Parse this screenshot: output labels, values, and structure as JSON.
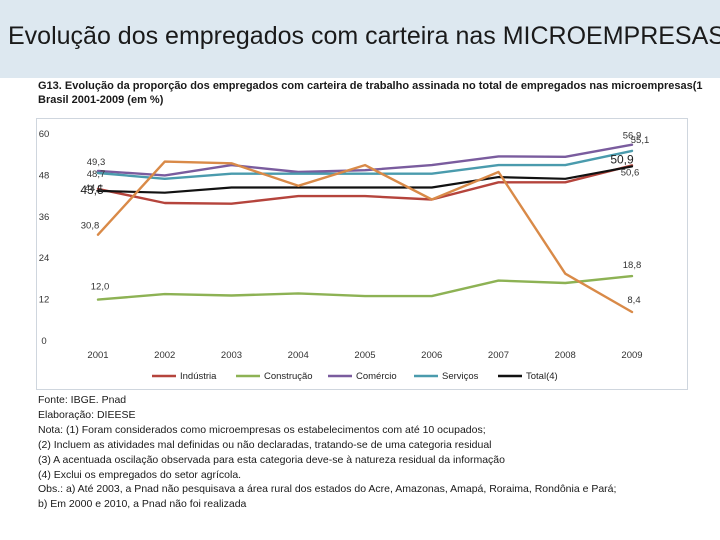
{
  "slide": {
    "title": "Evolução dos empregados com carteira nas MICROEMPRESAS"
  },
  "chart_heading": {
    "line1": "G13. Evolução da proporção dos empregados com carteira de trabalho assinada no total de empregados nas microempresas(1",
    "line2": "Brasil 2001-2009 (em %)"
  },
  "colors": {
    "title_bar_bg": "#dde8f0",
    "industria": "#b5443c",
    "construcao": "#8db254",
    "comercio": "#7a5c9e",
    "servicos": "#4a9bad",
    "total": "#111111",
    "overlay": "#d98a48"
  },
  "chart_data": {
    "type": "line",
    "x": [
      "2001",
      "2002",
      "2003",
      "2004",
      "2005",
      "2006",
      "2007",
      "2008",
      "2009"
    ],
    "ylim": [
      0,
      60
    ],
    "yticks": [
      "0",
      "12",
      "24",
      "36",
      "48",
      "60"
    ],
    "grid": false,
    "legend_position": "bottom",
    "series": [
      {
        "name": "Indústria",
        "color": "#b5443c",
        "values": [
          44.1,
          40.0,
          39.8,
          42.0,
          42.0,
          41.0,
          46.0,
          46.0,
          50.9
        ]
      },
      {
        "name": "Construção",
        "color": "#8db254",
        "values": [
          12.0,
          13.6,
          13.2,
          13.8,
          13.0,
          13.0,
          17.5,
          16.8,
          18.8
        ]
      },
      {
        "name": "Comércio",
        "color": "#7a5c9e",
        "values": [
          49.3,
          48.0,
          51.0,
          49.0,
          49.5,
          51.0,
          53.5,
          53.4,
          56.9
        ]
      },
      {
        "name": "Serviços",
        "color": "#4a9bad",
        "values": [
          48.7,
          47.0,
          48.5,
          48.5,
          48.5,
          48.5,
          51.0,
          51.0,
          55.1
        ]
      },
      {
        "name": "Total(4)",
        "color": "#111111",
        "values": [
          43.5,
          43.0,
          44.5,
          44.5,
          44.5,
          44.5,
          47.5,
          47.0,
          50.6
        ]
      },
      {
        "color": "#d98a48",
        "values": [
          30.8,
          52.0,
          51.5,
          45.0,
          51.0,
          41.0,
          49.0,
          19.5,
          8.4
        ]
      }
    ],
    "annotations": [
      {
        "text": "56,9",
        "x": "2009",
        "y": 56.9
      },
      {
        "text": "55,1",
        "x": "2009",
        "y": 55.1
      },
      {
        "text": "50,9",
        "x": "2009",
        "y": 50.9
      },
      {
        "text": "50,6",
        "x": "2009",
        "y": 50.6
      },
      {
        "text": "18,8",
        "x": "2009",
        "y": 18.8
      },
      {
        "text": "8,4",
        "x": "2009",
        "y": 8.4
      },
      {
        "text": "49,3",
        "x": "2001",
        "y": 49.3
      },
      {
        "text": "48,7",
        "x": "2001",
        "y": 48.7
      },
      {
        "text": "44,1",
        "x": "2001",
        "y": 44.1
      },
      {
        "text": "43,5",
        "x": "2001",
        "y": 43.5
      },
      {
        "text": "30,8",
        "x": "2001",
        "y": 30.8
      },
      {
        "text": "12,0",
        "x": "2001",
        "y": 12.0
      }
    ]
  },
  "notes": [
    "Fonte: IBGE. Pnad",
    "Elaboração: DIEESE",
    "Nota: (1) Foram considerados como microempresas os estabelecimentos com até 10 ocupados;",
    "(2) Incluem as atividades mal definidas ou não declaradas, tratando-se de uma categoria residual",
    "(3) A acentuada oscilação observada para esta categoria deve-se à natureza residual da informação",
    "(4) Exclui os empregados do setor agrícola.",
    "Obs.: a) Até 2003, a Pnad não pesquisava a área rural dos estados do Acre, Amazonas, Amapá, Roraima, Rondônia e Pará;",
    "b) Em 2000 e 2010, a Pnad não foi realizada"
  ]
}
